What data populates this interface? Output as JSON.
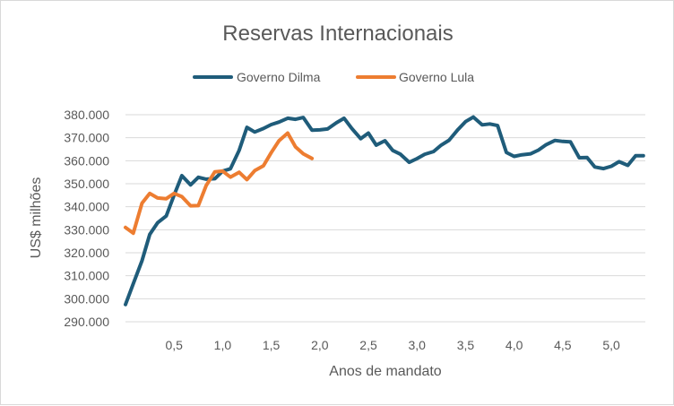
{
  "chart_data": {
    "type": "line",
    "title": "Reservas Internacionais",
    "xlabel": "Anos de mandato",
    "ylabel": "US$ milhões",
    "ylim": [
      290000,
      380000
    ],
    "xlim": [
      0,
      5.35
    ],
    "grid": true,
    "legend_position": "top",
    "y_ticks": [
      "290.000",
      "300.000",
      "310.000",
      "320.000",
      "330.000",
      "340.000",
      "350.000",
      "360.000",
      "370.000",
      "380.000"
    ],
    "x_ticks": [
      "0,5",
      "1,0",
      "1,5",
      "2,0",
      "2,5",
      "3,0",
      "3,5",
      "4,0",
      "4,5",
      "5,0"
    ],
    "series": [
      {
        "name": "Governo Dilma",
        "color": "#1f5c7a",
        "x": [
          0.0,
          0.08,
          0.17,
          0.25,
          0.33,
          0.42,
          0.5,
          0.58,
          0.67,
          0.75,
          0.83,
          0.92,
          1.0,
          1.08,
          1.17,
          1.25,
          1.33,
          1.42,
          1.5,
          1.58,
          1.67,
          1.75,
          1.83,
          1.92,
          2.0,
          2.08,
          2.17,
          2.25,
          2.33,
          2.42,
          2.5,
          2.58,
          2.67,
          2.75,
          2.83,
          2.92,
          3.0,
          3.08,
          3.17,
          3.25,
          3.33,
          3.42,
          3.5,
          3.58,
          3.67,
          3.75,
          3.83,
          3.92,
          4.0,
          4.08,
          4.17,
          4.25,
          4.33,
          4.42,
          4.5,
          4.58,
          4.67,
          4.75,
          4.83,
          4.92,
          5.0,
          5.08,
          5.17,
          5.25,
          5.33
        ],
        "values": [
          297500,
          306500,
          316500,
          328000,
          333000,
          336000,
          345000,
          353500,
          349500,
          352800,
          352000,
          352200,
          355500,
          356500,
          364500,
          374500,
          372500,
          374000,
          375700,
          376800,
          378500,
          378000,
          378800,
          373300,
          373400,
          373800,
          376500,
          378500,
          374000,
          369600,
          372000,
          366800,
          368700,
          364500,
          362800,
          359300,
          360900,
          362800,
          364000,
          366800,
          368900,
          373500,
          377000,
          379000,
          375600,
          376000,
          375300,
          363600,
          361900,
          362600,
          363000,
          364600,
          367000,
          368800,
          368400,
          368200,
          361300,
          361400,
          357300,
          356600,
          357600,
          359600,
          358000,
          362200,
          362200
        ]
      },
      {
        "name": "Governo Lula",
        "color": "#ed7d31",
        "x": [
          0.0,
          0.08,
          0.17,
          0.25,
          0.33,
          0.42,
          0.5,
          0.58,
          0.67,
          0.75,
          0.83,
          0.92,
          1.0,
          1.08,
          1.17,
          1.25,
          1.33,
          1.42,
          1.5,
          1.58,
          1.67,
          1.75,
          1.83,
          1.92
        ],
        "values": [
          331000,
          328500,
          341500,
          345800,
          343800,
          343500,
          345800,
          344400,
          340400,
          340500,
          349200,
          355200,
          355500,
          352900,
          355000,
          351800,
          355700,
          357800,
          363500,
          368700,
          372000,
          366000,
          363000,
          361000
        ]
      }
    ]
  }
}
